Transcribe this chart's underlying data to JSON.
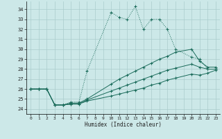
{
  "xlabel": "Humidex (Indice chaleur)",
  "bg_color": "#cce8e8",
  "grid_color": "#aacccc",
  "line_color": "#1a6b5a",
  "xlim": [
    -0.5,
    23.5
  ],
  "ylim": [
    23.5,
    34.8
  ],
  "yticks": [
    24,
    25,
    26,
    27,
    28,
    29,
    30,
    31,
    32,
    33,
    34
  ],
  "xticks": [
    0,
    1,
    2,
    3,
    4,
    5,
    6,
    7,
    8,
    9,
    10,
    11,
    12,
    13,
    14,
    15,
    16,
    17,
    18,
    19,
    20,
    21,
    22,
    23
  ],
  "series1_x": [
    0,
    1,
    2,
    3,
    4,
    5,
    6,
    7,
    10,
    11,
    12,
    13,
    14,
    15,
    16,
    17,
    18,
    20,
    21,
    22,
    23
  ],
  "series1_y": [
    26.0,
    26.0,
    26.0,
    24.4,
    24.4,
    24.7,
    24.7,
    27.8,
    33.7,
    33.2,
    33.0,
    34.3,
    32.0,
    33.0,
    33.0,
    32.0,
    30.0,
    29.2,
    29.0,
    28.0,
    28.0
  ],
  "series2_x": [
    0,
    1,
    2,
    3,
    4,
    5,
    6,
    7,
    10,
    11,
    12,
    13,
    14,
    15,
    16,
    17,
    18,
    20,
    21,
    22,
    23
  ],
  "series2_y": [
    26.0,
    26.0,
    26.0,
    24.4,
    24.4,
    24.6,
    24.6,
    25.0,
    26.5,
    27.0,
    27.4,
    27.8,
    28.2,
    28.6,
    29.0,
    29.3,
    29.7,
    30.0,
    28.8,
    28.2,
    28.2
  ],
  "series3_x": [
    0,
    1,
    2,
    3,
    4,
    5,
    6,
    7,
    10,
    11,
    12,
    13,
    14,
    15,
    16,
    17,
    18,
    20,
    21,
    22,
    23
  ],
  "series3_y": [
    26.0,
    26.0,
    26.0,
    24.4,
    24.4,
    24.5,
    24.5,
    24.9,
    25.8,
    26.1,
    26.4,
    26.7,
    27.0,
    27.3,
    27.6,
    27.9,
    28.1,
    28.5,
    28.2,
    28.0,
    28.0
  ],
  "series4_x": [
    0,
    1,
    2,
    3,
    4,
    5,
    6,
    7,
    10,
    11,
    12,
    13,
    14,
    15,
    16,
    17,
    18,
    20,
    21,
    22,
    23
  ],
  "series4_y": [
    26.0,
    26.0,
    26.0,
    24.4,
    24.4,
    24.5,
    24.5,
    24.8,
    25.3,
    25.5,
    25.7,
    25.9,
    26.1,
    26.4,
    26.6,
    26.9,
    27.1,
    27.5,
    27.4,
    27.6,
    27.9
  ]
}
